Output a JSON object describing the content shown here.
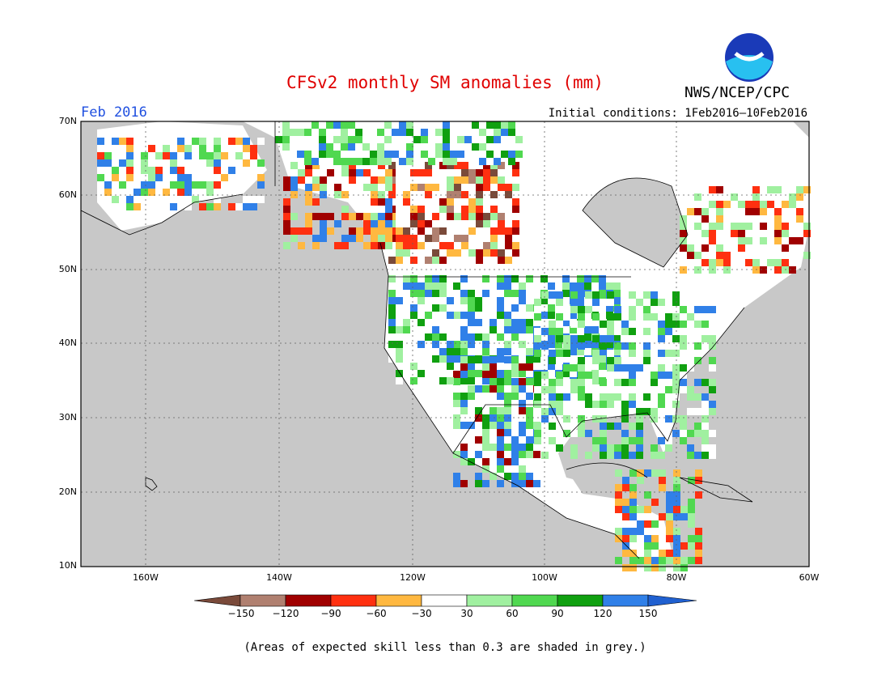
{
  "title": "CFSv2 monthly SM anomalies (mm)",
  "agency": "NWS/NCEP/CPC",
  "logo_text": "NOAA",
  "forecast_month": "Feb 2016",
  "initial_conditions": "Initial conditions: 1Feb2016–10Feb2016",
  "footnote": "(Areas of expected skill less than 0.3 are shaded in grey.)",
  "map": {
    "lat_labels": [
      "70N",
      "60N",
      "50N",
      "40N",
      "30N",
      "20N",
      "10N"
    ],
    "lon_labels": [
      "160W",
      "140W",
      "120W",
      "100W",
      "80W",
      "60W"
    ],
    "ocean_color": "#c8c8c8",
    "land_no_skill_color": "#c8c8c8",
    "land_color": "#ffffff"
  },
  "colorbar": {
    "labels": [
      "−150",
      "−120",
      "−90",
      "−60",
      "−30",
      "30",
      "60",
      "90",
      "120",
      "150"
    ],
    "colors": [
      "#7a4a3a",
      "#b08070",
      "#a00000",
      "#ff3010",
      "#ffb840",
      "#ffffff",
      "#a0f0a0",
      "#50d850",
      "#10a010",
      "#3080e8",
      "#2060d0"
    ]
  },
  "anomaly_regions": [
    {
      "name": "central-plains-wet",
      "color": "#3080e8"
    },
    {
      "name": "southwest-wet",
      "color": "#3080e8"
    },
    {
      "name": "canada-dry",
      "color": "#a00000"
    },
    {
      "name": "bc-dry",
      "color": "#ffb840"
    },
    {
      "name": "east-wet",
      "color": "#50d850"
    },
    {
      "name": "quebec-dry",
      "color": "#ff3010"
    }
  ]
}
